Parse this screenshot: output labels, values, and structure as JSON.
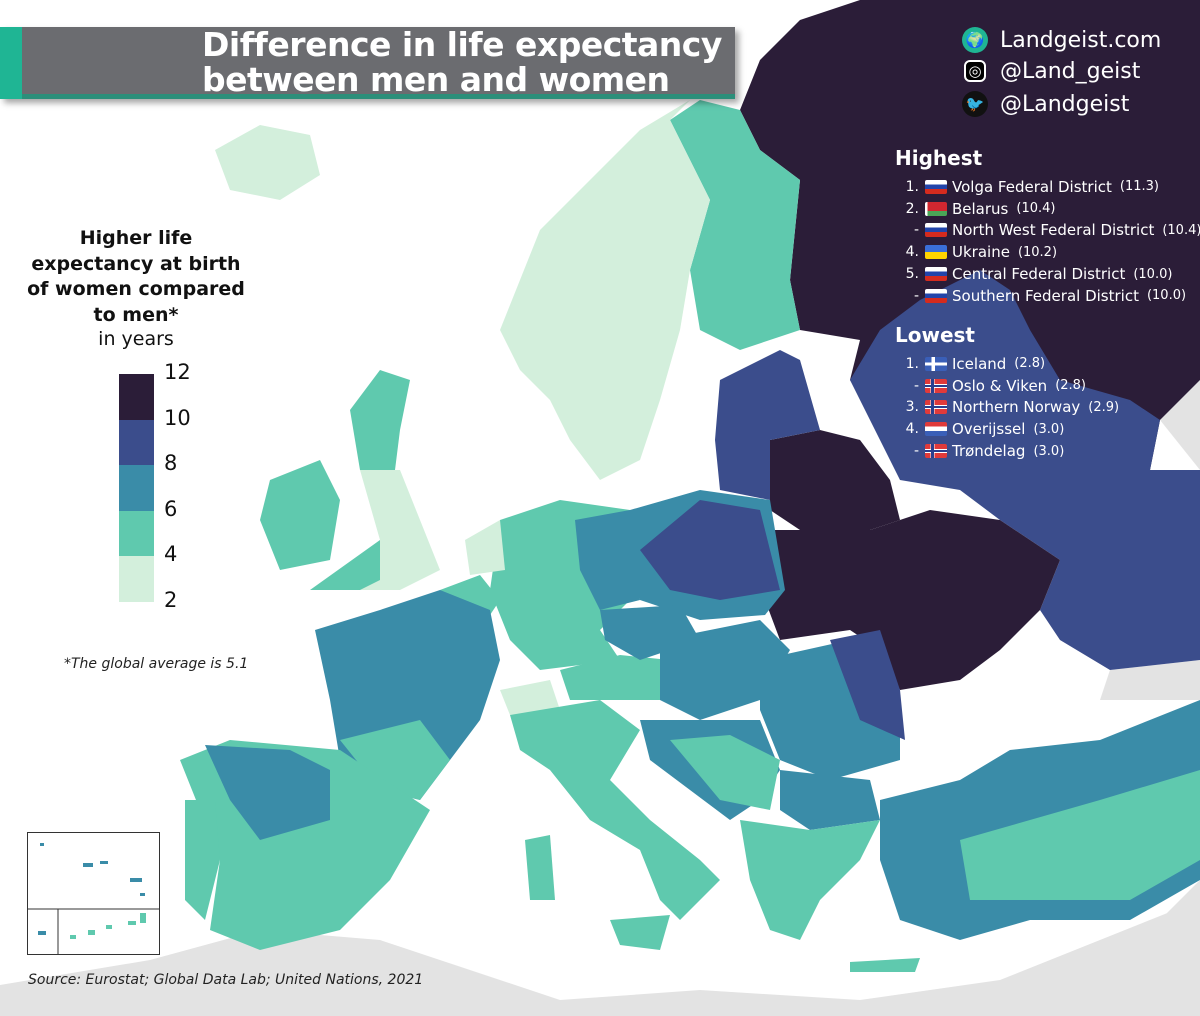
{
  "title": {
    "line1": "Difference in life expectancy",
    "line2": "between men and women"
  },
  "social": [
    {
      "icon": "globe-icon",
      "label": "Landgeist.com"
    },
    {
      "icon": "instagram-icon",
      "label": "@Land_geist"
    },
    {
      "icon": "twitter-icon",
      "label": "@Landgeist"
    }
  ],
  "highest": {
    "heading": "Highest",
    "items": [
      {
        "rank": "1.",
        "flag": "russia",
        "name": "Volga Federal District",
        "value": "(11.3)"
      },
      {
        "rank": "2.",
        "flag": "belarus",
        "name": "Belarus",
        "value": "(10.4)"
      },
      {
        "rank": "-",
        "flag": "russia",
        "name": "North West Federal District",
        "value": "(10.4)"
      },
      {
        "rank": "4.",
        "flag": "ukraine",
        "name": "Ukraine",
        "value": "(10.2)"
      },
      {
        "rank": "5.",
        "flag": "russia",
        "name": "Central Federal District",
        "value": "(10.0)"
      },
      {
        "rank": "-",
        "flag": "russia",
        "name": "Southern Federal District",
        "value": "(10.0)"
      }
    ]
  },
  "lowest": {
    "heading": "Lowest",
    "items": [
      {
        "rank": "1.",
        "flag": "iceland",
        "name": "Iceland",
        "value": "(2.8)"
      },
      {
        "rank": "-",
        "flag": "norway",
        "name": "Oslo & Viken",
        "value": "(2.8)"
      },
      {
        "rank": "3.",
        "flag": "norway",
        "name": "Northern Norway",
        "value": "(2.9)"
      },
      {
        "rank": "4.",
        "flag": "netherlands",
        "name": "Overijssel",
        "value": "(3.0)"
      },
      {
        "rank": "-",
        "flag": "norway",
        "name": "Trøndelag",
        "value": "(3.0)"
      }
    ]
  },
  "legend": {
    "title": "Higher life expectancy at birth of women compared to men*",
    "unit": "in years",
    "ticks": [
      "12",
      "10",
      "8",
      "6",
      "4",
      "2"
    ],
    "bins": [
      {
        "range": "10-12",
        "color": "#2b1d38"
      },
      {
        "range": "8-10",
        "color": "#3b4d8c"
      },
      {
        "range": "6-8",
        "color": "#3a8ca8"
      },
      {
        "range": "4-6",
        "color": "#5fc9ae"
      },
      {
        "range": "2-4",
        "color": "#d3efdc"
      }
    ]
  },
  "note": "*The global average is 5.1",
  "source": "Source: Eurostat; Global Data Lab; United Nations, 2021"
}
